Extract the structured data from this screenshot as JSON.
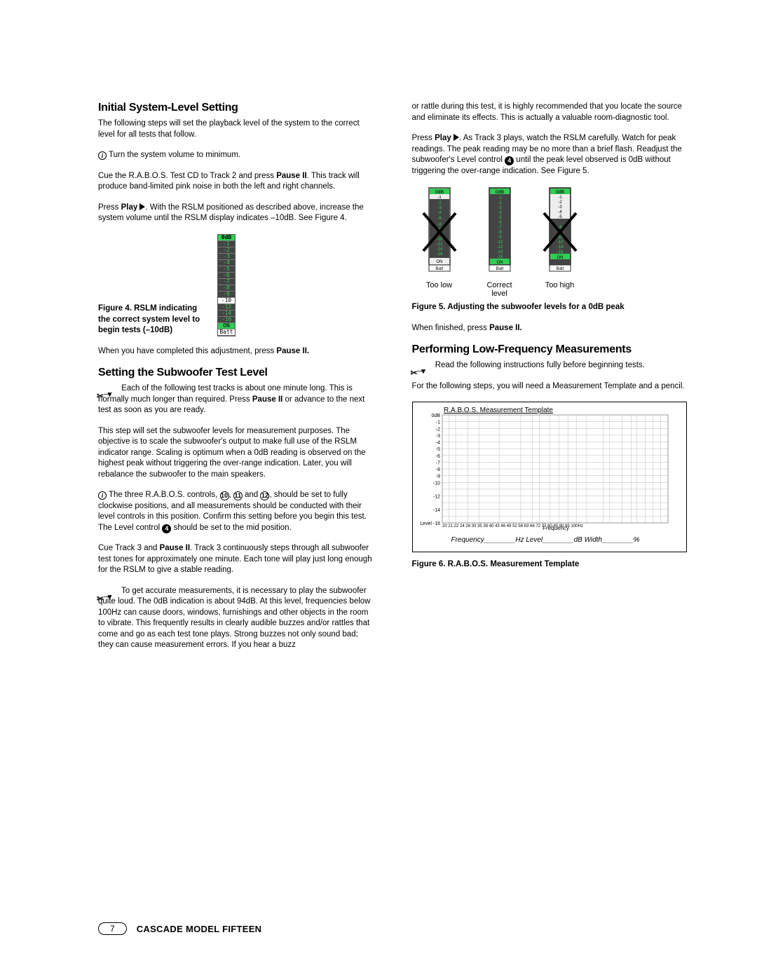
{
  "col1": {
    "h1": "Initial System-Level Setting",
    "p1": "The following steps will set the playback level of the system to the correct level for all tests that follow.",
    "p2": "Turn the system volume to minimum.",
    "p3a": "Cue the R.A.B.O.S. Test CD to Track 2 and press ",
    "p3b": "Pause II",
    "p3c": ". This track will produce band-limited pink noise in both the left and right channels.",
    "p4a": "Press ",
    "p4b": "Play",
    "p4c": ". With the RSLM positioned as described above, increase the system volume until the RSLM display indicates –10dB. See Figure 4.",
    "fig4": "Figure 4. RSLM indicating the correct system level to begin tests (–10dB)",
    "p5a": "When you have completed this adjustment, press ",
    "p5b": "Pause II.",
    "h2": "Setting the Subwoofer Test Level",
    "p6a": "Each of the following test tracks is about one minute long. This is normally much longer than required. Press ",
    "p6b": "Pause II",
    "p6c": " or advance to the next test as soon as you are ready.",
    "p7": "This step will set the subwoofer levels for measurement purposes. The objective is to scale the subwoofer's output to make full use of the RSLM indicator range. Scaling is optimum when a 0dB reading is observed on the highest peak without triggering the over-range indication. Later, you will rebalance the subwoofer to the main speakers.",
    "p8a": "The three R.A.B.O.S. controls, ",
    "p8b": ", ",
    "p8c": " and ",
    "p8d": ", should be set to fully clockwise positions, and all measurements should be conducted with their level controls in this position. Confirm this setting before you begin this test. The Level control ",
    "p8e": " should be set to the mid position.",
    "p9a": "Cue Track 3 and ",
    "p9b": "Pause II",
    "p9c": ". Track 3 continuously steps through all subwoofer test tones for approximately one minute. Each tone will play just long enough for the RSLM to give a stable reading.",
    "p10": "To get accurate measurements, it is necessary to play the subwoofer quite loud. The 0dB indication is about 94dB. At this level, frequencies below 100Hz can cause doors, windows, furnishings and other objects in the room to vibrate. This frequently results in clearly audible buzzes and/or rattles that come and go as each test tone plays. Strong buzzes not only sound bad; they can cause measurement errors. If you hear a buzz"
  },
  "col2": {
    "p1": "or rattle during this test, it is highly recommended that you locate the source and eliminate its effects. This is actually a valuable room-diagnostic tool.",
    "p2a": "Press ",
    "p2b": "Play",
    "p2c": ". As Track 3 plays, watch the RSLM carefully. Watch for peak readings. The peak reading may be no more than a brief flash. Readjust the subwoofer's Level control ",
    "p2d": " until the peak level observed is 0dB without triggering the over-range indication. See Figure 5.",
    "m1": "Too low",
    "m2a": "Correct",
    "m2b": "level",
    "m3": "Too high",
    "fig5": "Figure 5. Adjusting the subwoofer levels for a 0dB peak",
    "p3a": "When finished, press ",
    "p3b": "Pause II.",
    "h1": "Performing Low-Frequency Measurements",
    "p4": "Read the following instructions fully before beginning tests.",
    "p5": "For the following steps, you will need a Measurement Template and a pencil.",
    "tlabel": "R.A.B.O.S. Measurement Template",
    "ty": [
      "0dB",
      "-1",
      "-2",
      "-3",
      "-4",
      "-5",
      "-6",
      "-7",
      "-8",
      "-9",
      "-10",
      "",
      "-12",
      "",
      "-14",
      "",
      "Level -16"
    ],
    "tx": "20 21 22   24   26        30        35   38 40  43  46  49 52   56     63 66   72 77 80 85 90 95 100Hz",
    "tfx": "Frequency",
    "tf": "Frequency________Hz       Level________dB       Width________%",
    "fig6": "Figure 6. R.A.B.O.S. Measurement Template"
  },
  "footer": {
    "page": "7",
    "title": "CASCADE MODEL FIFTEEN"
  }
}
